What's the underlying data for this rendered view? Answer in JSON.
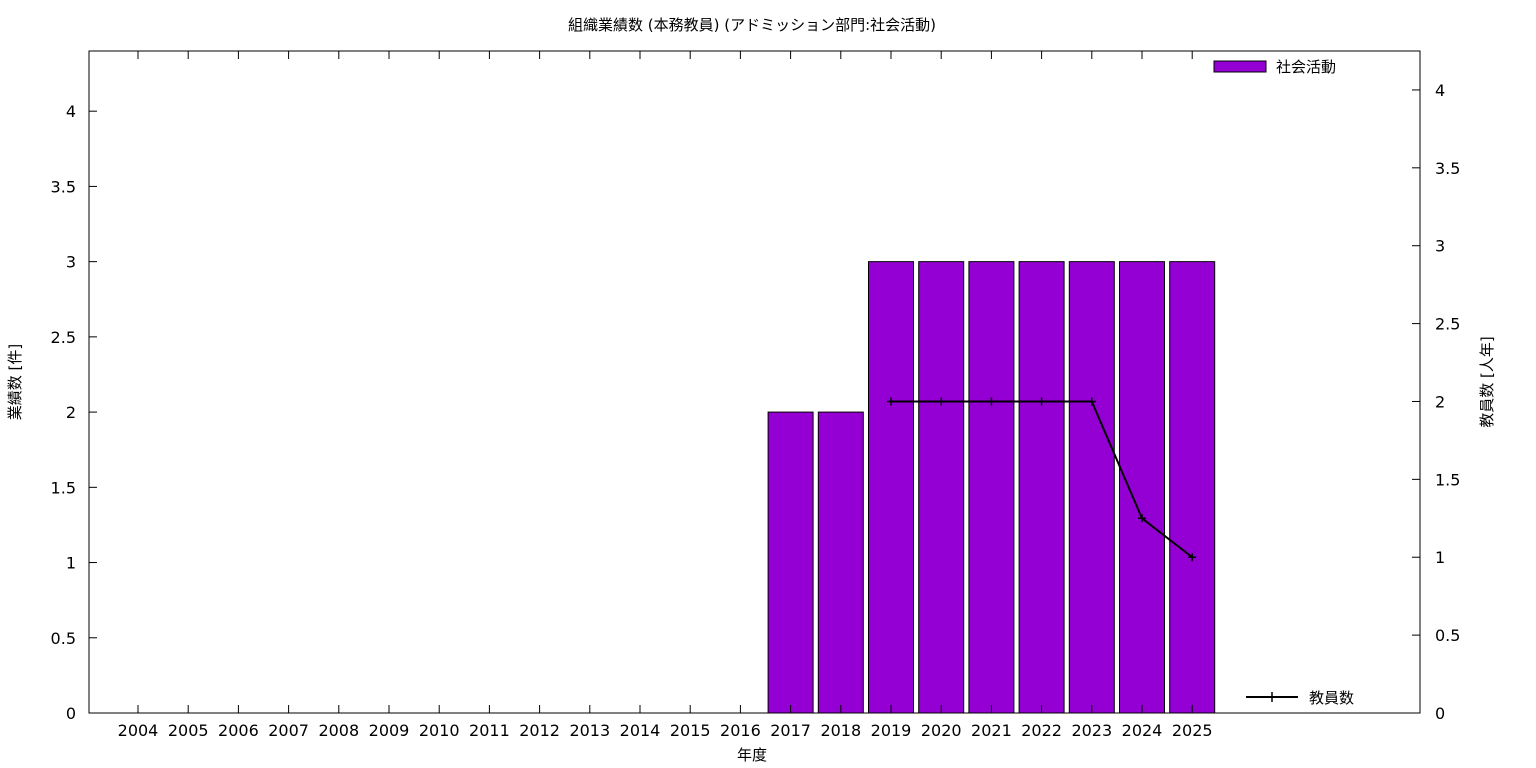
{
  "chart_data": {
    "type": "bar",
    "title": "組織業績数 (本務教員) (アドミッション部門:社会活動)",
    "xlabel": "年度",
    "ylabel": "業績数 [件]",
    "y2label": "教員数 [人年]",
    "categories": [
      "2004",
      "2005",
      "2006",
      "2007",
      "2008",
      "2009",
      "2010",
      "2011",
      "2012",
      "2013",
      "2014",
      "2015",
      "2016",
      "2017",
      "2018",
      "2019",
      "2020",
      "2021",
      "2022",
      "2023",
      "2024",
      "2025"
    ],
    "series": [
      {
        "name": "社会活動",
        "type": "bar",
        "axis": "left",
        "color": "#9400d3",
        "values": [
          0,
          0,
          0,
          0,
          0,
          0,
          0,
          0,
          0,
          0,
          0,
          0,
          0,
          2,
          2,
          3,
          3,
          3,
          3,
          3,
          3,
          3
        ]
      },
      {
        "name": "教員数",
        "type": "line",
        "axis": "right",
        "color": "#000000",
        "values": [
          null,
          null,
          null,
          null,
          null,
          null,
          null,
          null,
          null,
          null,
          null,
          null,
          null,
          null,
          null,
          2,
          2,
          2,
          2,
          2,
          1.25,
          1
        ]
      }
    ],
    "ylim": [
      0,
      4.4
    ],
    "y2lim": [
      0,
      4.25
    ],
    "yticks": [
      "0",
      "0.5",
      "1",
      "1.5",
      "2",
      "2.5",
      "3",
      "3.5",
      "4"
    ],
    "y2ticks": [
      "0",
      "0.5",
      "1",
      "1.5",
      "2",
      "2.5",
      "3",
      "3.5",
      "4"
    ],
    "legend_bar_position": "top-right",
    "legend_line_position": "bottom-right",
    "grid": false
  }
}
